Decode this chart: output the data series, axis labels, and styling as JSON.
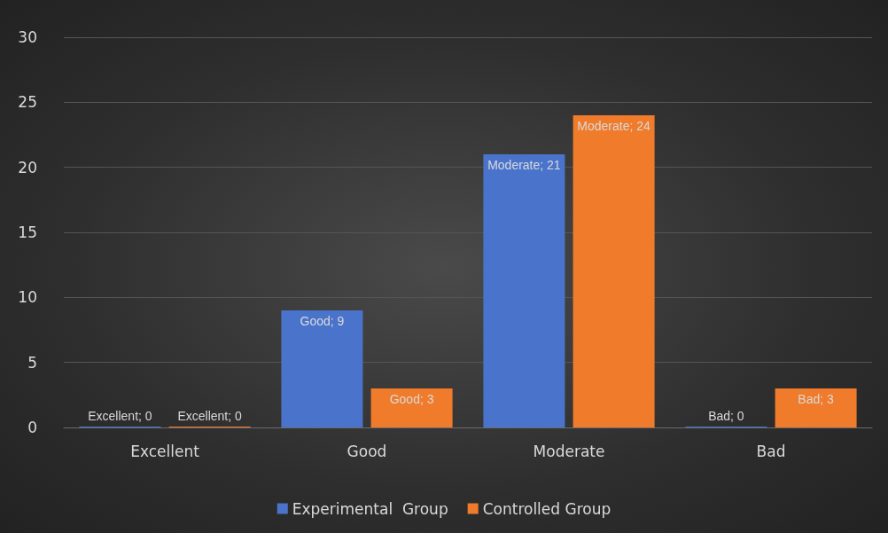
{
  "chart_data": {
    "type": "bar",
    "categories": [
      "Excellent",
      "Good",
      "Moderate",
      "Bad"
    ],
    "series": [
      {
        "name": "Experimental  Group",
        "color": "#4a74cc",
        "values": [
          0,
          9,
          21,
          0
        ],
        "value_labels": [
          "Excellent; 0",
          "Good; 9",
          "Moderate; 21",
          "Bad; 0"
        ]
      },
      {
        "name": "Controlled Group",
        "color": "#f07b2a",
        "values": [
          0,
          3,
          24,
          3
        ],
        "value_labels": [
          "Excellent; 0",
          "Good; 3",
          "Moderate; 24",
          "Bad; 3"
        ]
      }
    ],
    "ylim": [
      0,
      30
    ],
    "yticks": [
      0,
      5,
      10,
      15,
      20,
      25,
      30
    ],
    "grid": "y",
    "legend": "bottom"
  }
}
